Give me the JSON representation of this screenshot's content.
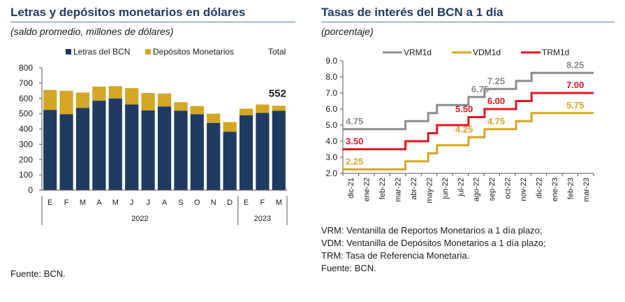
{
  "left": {
    "title": "Letras y depósitos monetarios en dólares",
    "subtitle": "(saldo promedio, millones de dólares)",
    "source": "Fuente: BCN."
  },
  "right": {
    "title": "Tasas de interés del BCN a 1 día",
    "subtitle": "(porcentaje)",
    "notes": [
      "VRM: Ventanilla de Reportos Monetarios a 1 día plazo;",
      "VDM: Ventanilla de Depósitos Monetarios a 1 día plazo;",
      "TRM: Tasa de Referencia Monetaria.",
      "Fuente: BCN."
    ]
  },
  "chart_data": [
    {
      "type": "bar",
      "stacked": true,
      "title": "Letras y depósitos monetarios en dólares",
      "subtitle": "(saldo promedio, millones de dólares)",
      "categories": [
        "E",
        "F",
        "M",
        "A",
        "M",
        "J",
        "J",
        "A",
        "S",
        "O",
        "N",
        "D",
        "E",
        "F",
        "M"
      ],
      "year_groups": [
        {
          "label": "2022",
          "count": 12
        },
        {
          "label": "2023",
          "count": 3
        }
      ],
      "series": [
        {
          "name": "Letras del BCN",
          "color": "#1f3b64",
          "values": [
            525,
            497,
            538,
            585,
            600,
            560,
            522,
            547,
            520,
            497,
            440,
            382,
            490,
            505,
            520
          ]
        },
        {
          "name": "Depósitos Monetarios",
          "color": "#d4a624",
          "values": [
            130,
            153,
            100,
            92,
            80,
            107,
            113,
            85,
            55,
            53,
            60,
            63,
            43,
            55,
            32
          ]
        }
      ],
      "total_label": "Total",
      "annotation": "552",
      "ylim": [
        0,
        800
      ],
      "yticks": [
        0,
        100,
        200,
        300,
        400,
        500,
        600,
        700,
        800
      ],
      "legend_position": "top-right",
      "grid": false
    },
    {
      "type": "line",
      "step": true,
      "title": "Tasas de interés del BCN a 1 día",
      "subtitle": "(porcentaje)",
      "x": [
        "dic-21",
        "ene-22",
        "feb-22",
        "mar-22",
        "abr-22",
        "may-22",
        "jun-22",
        "jul-22",
        "ago-22",
        "sep-22",
        "oct-22",
        "nov-22",
        "dic-22",
        "ene-23",
        "feb-23",
        "mar-23"
      ],
      "series": [
        {
          "name": "VRM1d",
          "color": "#8c8c8c",
          "points": [
            [
              "2021-12-01",
              4.75
            ],
            [
              "2022-04-01",
              5.25
            ],
            [
              "2022-05-15",
              5.75
            ],
            [
              "2022-06-01",
              6.25
            ],
            [
              "2022-08-01",
              6.75
            ],
            [
              "2022-09-01",
              7.25
            ],
            [
              "2022-11-01",
              7.75
            ],
            [
              "2022-12-01",
              8.25
            ],
            [
              "2023-03-31",
              8.25
            ]
          ],
          "labels": [
            {
              "x": "2021-12-01",
              "y": 4.75,
              "text": "4.75"
            },
            {
              "x": "2022-08-01",
              "y": 6.75,
              "text": "6.75"
            },
            {
              "x": "2022-09-01",
              "y": 7.25,
              "text": "7.25"
            },
            {
              "x": "2023-02-01",
              "y": 8.25,
              "text": "8.25"
            }
          ]
        },
        {
          "name": "VDM1d",
          "color": "#d4a624",
          "points": [
            [
              "2021-12-01",
              2.25
            ],
            [
              "2022-04-01",
              2.75
            ],
            [
              "2022-05-15",
              3.25
            ],
            [
              "2022-06-01",
              3.75
            ],
            [
              "2022-08-01",
              4.25
            ],
            [
              "2022-09-01",
              4.75
            ],
            [
              "2022-11-01",
              5.25
            ],
            [
              "2022-12-01",
              5.75
            ],
            [
              "2023-03-31",
              5.75
            ]
          ],
          "labels": [
            {
              "x": "2021-12-01",
              "y": 2.25,
              "text": "2.25"
            },
            {
              "x": "2022-07-01",
              "y": 4.25,
              "text": "4.25"
            },
            {
              "x": "2022-09-01",
              "y": 4.75,
              "text": "4.75"
            },
            {
              "x": "2023-02-01",
              "y": 5.75,
              "text": "5.75"
            }
          ]
        },
        {
          "name": "TRM1d",
          "color": "#e8141c",
          "points": [
            [
              "2021-12-01",
              3.5
            ],
            [
              "2022-04-01",
              4.0
            ],
            [
              "2022-05-15",
              4.5
            ],
            [
              "2022-06-01",
              5.0
            ],
            [
              "2022-08-01",
              5.5
            ],
            [
              "2022-09-01",
              6.0
            ],
            [
              "2022-11-01",
              6.5
            ],
            [
              "2022-12-01",
              7.0
            ],
            [
              "2023-03-31",
              7.0
            ]
          ],
          "labels": [
            {
              "x": "2021-12-01",
              "y": 3.5,
              "text": "3.50"
            },
            {
              "x": "2022-07-01",
              "y": 5.5,
              "text": "5.50"
            },
            {
              "x": "2022-09-01",
              "y": 6.0,
              "text": "6.00"
            },
            {
              "x": "2023-02-01",
              "y": 7.0,
              "text": "7.00"
            }
          ]
        }
      ],
      "xlim": [
        "2021-12-01",
        "2023-03-31"
      ],
      "ylim": [
        2.0,
        9.0
      ],
      "yticks": [
        "2.0",
        "3.0",
        "4.0",
        "5.0",
        "6.0",
        "7.0",
        "8.0",
        "9.0"
      ],
      "legend_position": "top",
      "grid": false
    }
  ]
}
